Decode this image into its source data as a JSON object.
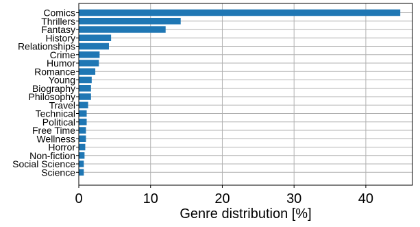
{
  "chart_data": {
    "type": "bar",
    "orientation": "horizontal",
    "title": "",
    "xlabel": "Genre distribution [%]",
    "ylabel": "",
    "xlim": [
      0,
      46.5
    ],
    "xticks": [
      0,
      10,
      20,
      30,
      40
    ],
    "grid": true,
    "legend": "none",
    "bar_color": "#1f77b4",
    "categories": [
      "Comics",
      "Thrillers",
      "Fantasy",
      "History",
      "Relationships",
      "Crime",
      "Humor",
      "Romance",
      "Young",
      "Biography",
      "Philosophy",
      "Travel",
      "Technical",
      "Political",
      "Free Time",
      "Wellness",
      "Horror",
      "Non-fiction",
      "Social Science",
      "Science"
    ],
    "values": [
      44.8,
      14.2,
      12.1,
      4.5,
      4.2,
      2.9,
      2.8,
      2.3,
      1.8,
      1.7,
      1.7,
      1.3,
      1.1,
      1.1,
      1.0,
      1.0,
      0.9,
      0.8,
      0.7,
      0.7
    ]
  }
}
